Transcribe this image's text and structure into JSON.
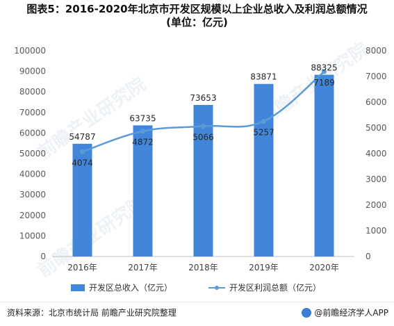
{
  "title": {
    "line1": "图表5：2016-2020年北京市开发区规模以上企业总收入及利润总额情况",
    "line2": "(单位：亿元)"
  },
  "chart_data": {
    "type": "bar",
    "categories": [
      "2016年",
      "2017年",
      "2018年",
      "2019年",
      "2020年"
    ],
    "series": [
      {
        "name": "开发区总收入（亿元）",
        "type": "bar",
        "axis": "left",
        "values": [
          54787,
          63735,
          73653,
          83871,
          88325
        ],
        "color": "#4286db"
      },
      {
        "name": "开发区利润总额（亿元）",
        "type": "line",
        "axis": "right",
        "values": [
          4074,
          4872,
          5066,
          5257,
          7189
        ],
        "color": "#5b9bd5"
      }
    ],
    "y_left": {
      "min": 0,
      "max": 100000,
      "ticks": [
        0,
        10000,
        20000,
        30000,
        40000,
        50000,
        60000,
        70000,
        80000,
        90000,
        100000
      ]
    },
    "y_right": {
      "min": 0,
      "max": 8000,
      "ticks": [
        0,
        1000,
        2000,
        3000,
        4000,
        5000,
        6000,
        7000,
        8000
      ]
    },
    "grid": false,
    "legend_position": "bottom"
  },
  "legend": {
    "bar_label": "开发区总收入（亿元）",
    "line_label": "开发区利润总额（亿元）"
  },
  "footer": {
    "source": "资料来源：北京市统计局 前瞻产业研究院整理",
    "brand": "@前瞻经济学人APP"
  },
  "watermark": "前瞻产业研究院"
}
